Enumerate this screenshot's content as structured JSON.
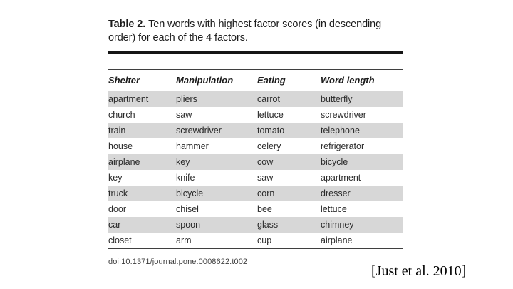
{
  "caption": {
    "label": "Table 2.",
    "text": "Ten words with highest factor scores (in descending order) for each of the 4 factors."
  },
  "table": {
    "columns": [
      "Shelter",
      "Manipulation",
      "Eating",
      "Word length"
    ],
    "rows": [
      [
        "apartment",
        "pliers",
        "carrot",
        "butterfly"
      ],
      [
        "church",
        "saw",
        "lettuce",
        "screwdriver"
      ],
      [
        "train",
        "screwdriver",
        "tomato",
        "telephone"
      ],
      [
        "house",
        "hammer",
        "celery",
        "refrigerator"
      ],
      [
        "airplane",
        "key",
        "cow",
        "bicycle"
      ],
      [
        "key",
        "knife",
        "saw",
        "apartment"
      ],
      [
        "truck",
        "bicycle",
        "corn",
        "dresser"
      ],
      [
        "door",
        "chisel",
        "bee",
        "lettuce"
      ],
      [
        "car",
        "spoon",
        "glass",
        "chimney"
      ],
      [
        "closet",
        "arm",
        "cup",
        "airplane"
      ]
    ],
    "doi": "doi:10.1371/journal.pone.0008622.t002"
  },
  "citation": "[Just et al. 2010]",
  "colors": {
    "background": "#ffffff",
    "row_stripe": "#d7d7d7",
    "rule_heavy": "#151515",
    "rule_light": "#3f3f3f",
    "text": "#242424"
  }
}
